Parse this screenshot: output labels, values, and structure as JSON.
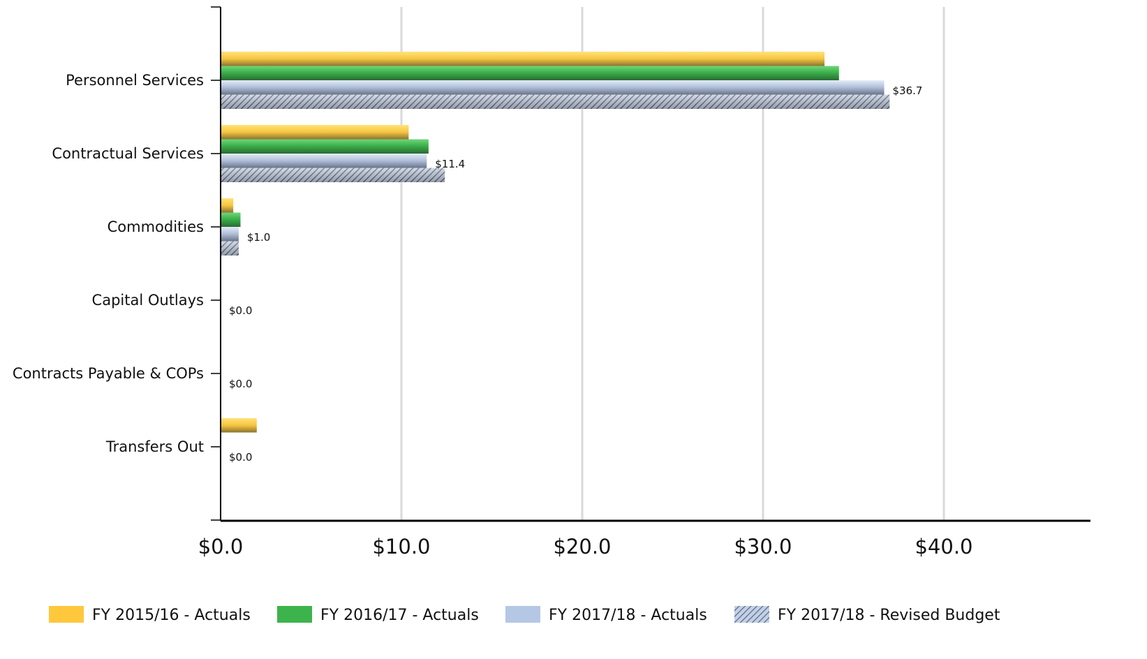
{
  "chart_data": {
    "type": "bar",
    "orientation": "horizontal",
    "categories": [
      "Personnel Services",
      "Contractual Services",
      "Commodities",
      "Capital Outlays",
      "Contracts Payable & COPs",
      "Transfers Out"
    ],
    "series": [
      {
        "name": "FY 2015/16 - Actuals",
        "values": [
          33.4,
          10.4,
          0.7,
          0,
          0,
          2.0
        ],
        "color": "#FFC83C"
      },
      {
        "name": "FY 2016/17 - Actuals",
        "values": [
          34.2,
          11.5,
          1.1,
          0,
          0,
          0
        ],
        "color": "#3CB44B"
      },
      {
        "name": "FY 2017/18 - Actuals",
        "values": [
          36.7,
          11.4,
          1.0,
          0,
          0,
          0
        ],
        "color": "#B4C8E6"
      },
      {
        "name": "FY 2017/18 - Revised Budget",
        "values": [
          37.0,
          12.4,
          1.0,
          0,
          0,
          0
        ],
        "color": "#8C9BB4",
        "pattern": "diagonal-hatch"
      }
    ],
    "data_labels": [
      "$36.7",
      "$11.4",
      "$1.0",
      "$0.0",
      "$0.0",
      "$0.0"
    ],
    "x_ticks": [
      "$0.0",
      "$10.0",
      "$20.0",
      "$30.0",
      "$40.0"
    ],
    "xlim": [
      0,
      48
    ],
    "grid": true,
    "legend_position": "bottom",
    "title": "",
    "xlabel": "",
    "ylabel": ""
  }
}
